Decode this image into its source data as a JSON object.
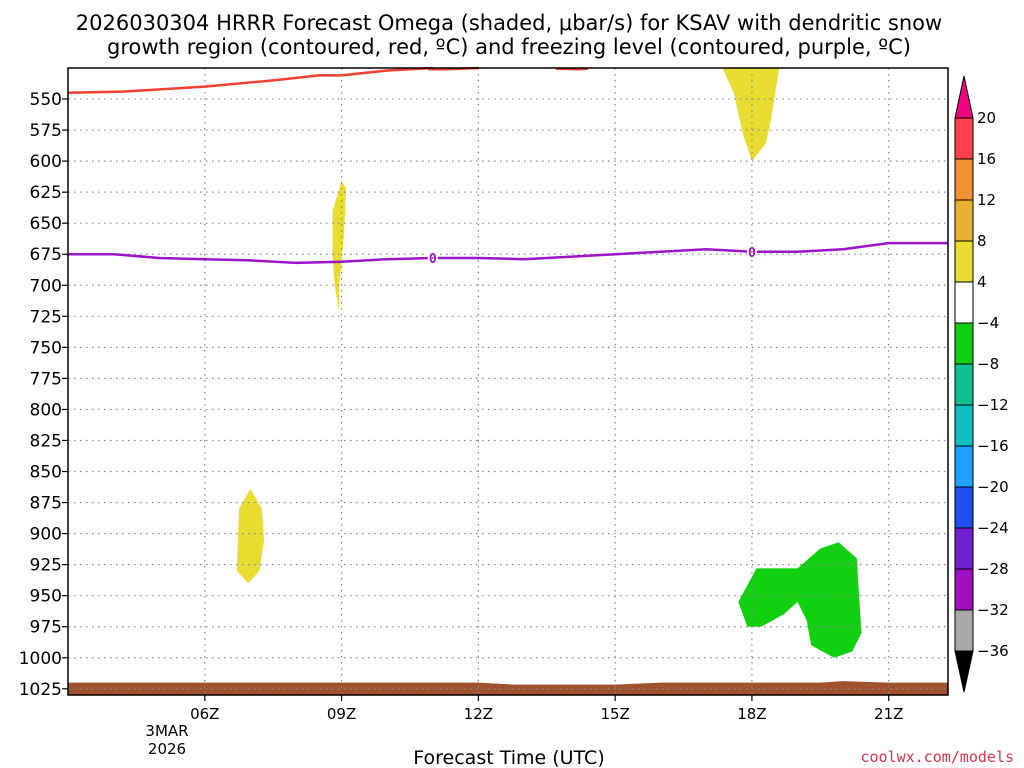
{
  "chart_data": {
    "type": "heatmap",
    "title_line1": "2026030304 HRRR Forecast Omega (shaded, μbar/s) for KSAV with dendritic snow",
    "title_line2": "growth region (contoured, red, ºC) and freezing level (contoured, purple, ºC)",
    "xlabel": "Forecast Time (UTC)",
    "x_range_hours": [
      3,
      22.3
    ],
    "x_ticks": [
      {
        "hour": 6,
        "label": "06Z"
      },
      {
        "hour": 9,
        "label": "09Z"
      },
      {
        "hour": 12,
        "label": "12Z"
      },
      {
        "hour": 15,
        "label": "15Z"
      },
      {
        "hour": 18,
        "label": "18Z"
      },
      {
        "hour": 21,
        "label": "21Z"
      }
    ],
    "date_label": {
      "day": "3MAR",
      "year": "2026"
    },
    "y_range_hpa": [
      525,
      1030
    ],
    "y_ticks": [
      550,
      575,
      600,
      625,
      650,
      675,
      700,
      725,
      750,
      775,
      800,
      825,
      850,
      875,
      900,
      925,
      950,
      975,
      1000,
      1025
    ],
    "grid": true,
    "dendritic_growth_contour": {
      "color": "#f04030",
      "points": [
        [
          3.0,
          545
        ],
        [
          4.2,
          544
        ],
        [
          6,
          540
        ],
        [
          7.5,
          535
        ],
        [
          8.5,
          531
        ],
        [
          9,
          531
        ],
        [
          10,
          527
        ],
        [
          11,
          525
        ]
      ]
    },
    "dendritic_growth_contour_b": {
      "color": "#f04030",
      "points": [
        [
          10.9,
          526
        ],
        [
          11.3,
          526
        ],
        [
          12,
          525
        ]
      ]
    },
    "dendritic_growth_contour_c": {
      "color": "#f04030",
      "points": [
        [
          13.7,
          525.5
        ],
        [
          14.2,
          526
        ],
        [
          14.4,
          525.5
        ]
      ]
    },
    "freezing_level_contour": {
      "color": "#9d13c8",
      "label": "0",
      "label_hours": [
        11,
        18
      ],
      "points": [
        [
          3,
          675
        ],
        [
          4,
          675
        ],
        [
          5,
          678
        ],
        [
          6,
          679
        ],
        [
          7,
          680
        ],
        [
          8,
          682
        ],
        [
          9,
          681
        ],
        [
          10,
          679
        ],
        [
          11,
          678
        ],
        [
          12,
          678
        ],
        [
          13,
          679
        ],
        [
          14,
          677
        ],
        [
          15,
          675
        ],
        [
          16,
          673
        ],
        [
          17,
          671
        ],
        [
          18,
          673
        ],
        [
          19,
          673
        ],
        [
          20,
          671
        ],
        [
          21,
          666
        ],
        [
          22.3,
          666
        ]
      ]
    },
    "omega_regions": [
      {
        "name": "ascent-0900",
        "value_range": [
          4,
          8
        ],
        "color": "#e8dc30",
        "polygon": [
          [
            8.8,
            640
          ],
          [
            9.0,
            616
          ],
          [
            9.1,
            622
          ],
          [
            9.05,
            660
          ],
          [
            8.95,
            700
          ],
          [
            8.95,
            722
          ],
          [
            8.85,
            700
          ],
          [
            8.8,
            675
          ]
        ]
      },
      {
        "name": "ascent-1700",
        "value_range": [
          4,
          8
        ],
        "color": "#e8dc30",
        "polygon": [
          [
            17.35,
            525
          ],
          [
            18.6,
            525
          ],
          [
            18.4,
            570
          ],
          [
            18.3,
            586
          ],
          [
            18.0,
            600
          ],
          [
            17.8,
            578
          ],
          [
            17.6,
            545
          ]
        ]
      },
      {
        "name": "ascent-0700",
        "value_range": [
          4,
          8
        ],
        "color": "#e8dc30",
        "polygon": [
          [
            7.0,
            864
          ],
          [
            7.25,
            880
          ],
          [
            7.3,
            905
          ],
          [
            7.2,
            930
          ],
          [
            6.95,
            940
          ],
          [
            6.7,
            930
          ],
          [
            6.75,
            880
          ]
        ]
      },
      {
        "name": "descent-1800",
        "value_range": [
          -8,
          -4
        ],
        "color": "#10d010",
        "polygon": [
          [
            17.7,
            955
          ],
          [
            18.1,
            928
          ],
          [
            19,
            928
          ],
          [
            19.5,
            912
          ],
          [
            19.9,
            907
          ],
          [
            20.3,
            920
          ],
          [
            20.4,
            980
          ],
          [
            20.2,
            995
          ],
          [
            19.8,
            1000
          ],
          [
            19.3,
            990
          ],
          [
            19.2,
            970
          ],
          [
            19.0,
            955
          ],
          [
            18.7,
            965
          ],
          [
            18.2,
            975
          ],
          [
            17.9,
            975
          ]
        ]
      }
    ],
    "terrain": {
      "color": "#a0522d",
      "top_hpa": 1020
    },
    "colorbar": {
      "unit": "μbar/s",
      "levels": [
        20,
        16,
        12,
        8,
        4,
        -4,
        -8,
        -12,
        -16,
        -20,
        -24,
        -28,
        -32,
        -36
      ],
      "colors": [
        "#ff3f4a",
        "#f09030",
        "#e8b030",
        "#e8dc30",
        "#ffffff",
        "#10d010",
        "#10c090",
        "#10c0c0",
        "#20a0ff",
        "#2050f0",
        "#7020d0",
        "#a010c0",
        "#a8a8a8"
      ],
      "top_arrow_color": "#ee0580",
      "bottom_arrow_color": "#000000"
    }
  },
  "credit": "coolwx.com/models"
}
